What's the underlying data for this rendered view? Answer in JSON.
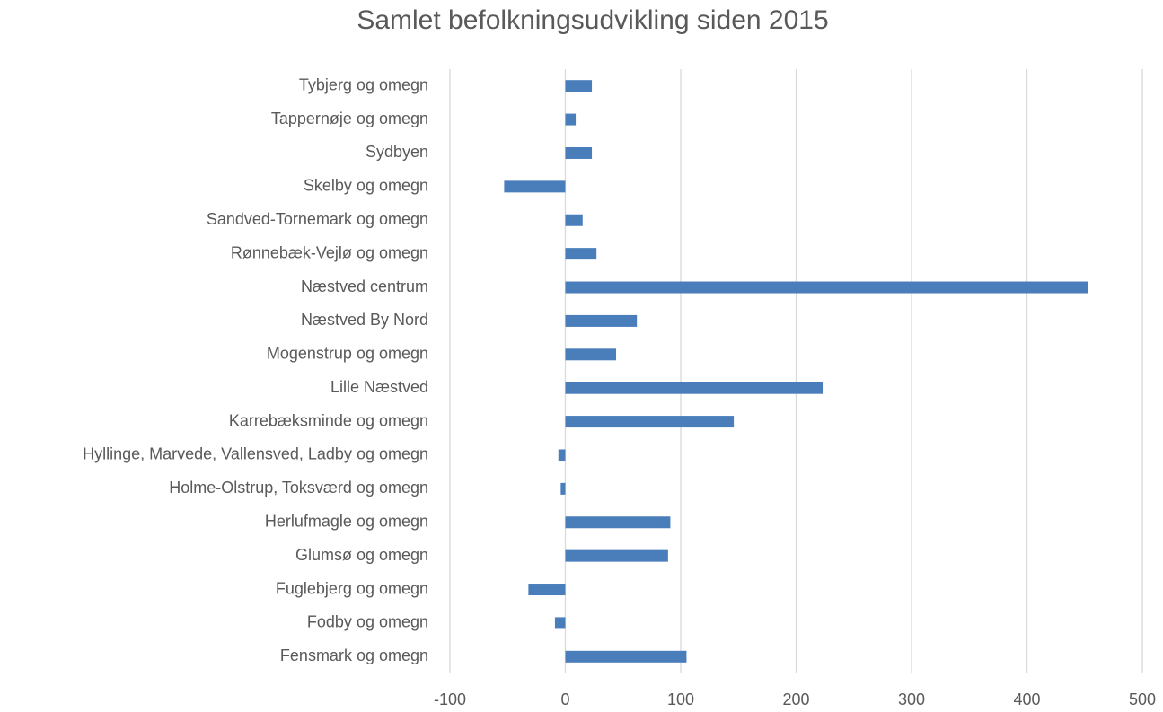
{
  "chart_data": {
    "type": "bar",
    "orientation": "horizontal",
    "title": "Samlet befolkningsudvikling siden 2015",
    "categories": [
      "Tybjerg og omegn",
      "Tappernøje og omegn",
      "Sydbyen",
      "Skelby og omegn",
      "Sandved-Tornemark og omegn",
      "Rønnebæk-Vejlø og omegn",
      "Næstved centrum",
      "Næstved By Nord",
      "Mogenstrup og omegn",
      "Lille Næstved",
      "Karrebæksminde og omegn",
      "Hyllinge, Marvede, Vallensved, Ladby og omegn",
      "Holme-Olstrup, Toksværd og omegn",
      "Herlufmagle og omegn",
      "Glumsø og omegn",
      "Fuglebjerg og omegn",
      "Fodby og omegn",
      "Fensmark og omegn"
    ],
    "values": [
      23,
      9,
      23,
      -53,
      15,
      27,
      453,
      62,
      44,
      223,
      146,
      -6,
      -4,
      91,
      89,
      -32,
      -9,
      105
    ],
    "color": "#4a7ebb",
    "xlim": [
      -100,
      500
    ],
    "xticks": [
      -100,
      0,
      100,
      200,
      300,
      400,
      500
    ],
    "grid": true
  }
}
